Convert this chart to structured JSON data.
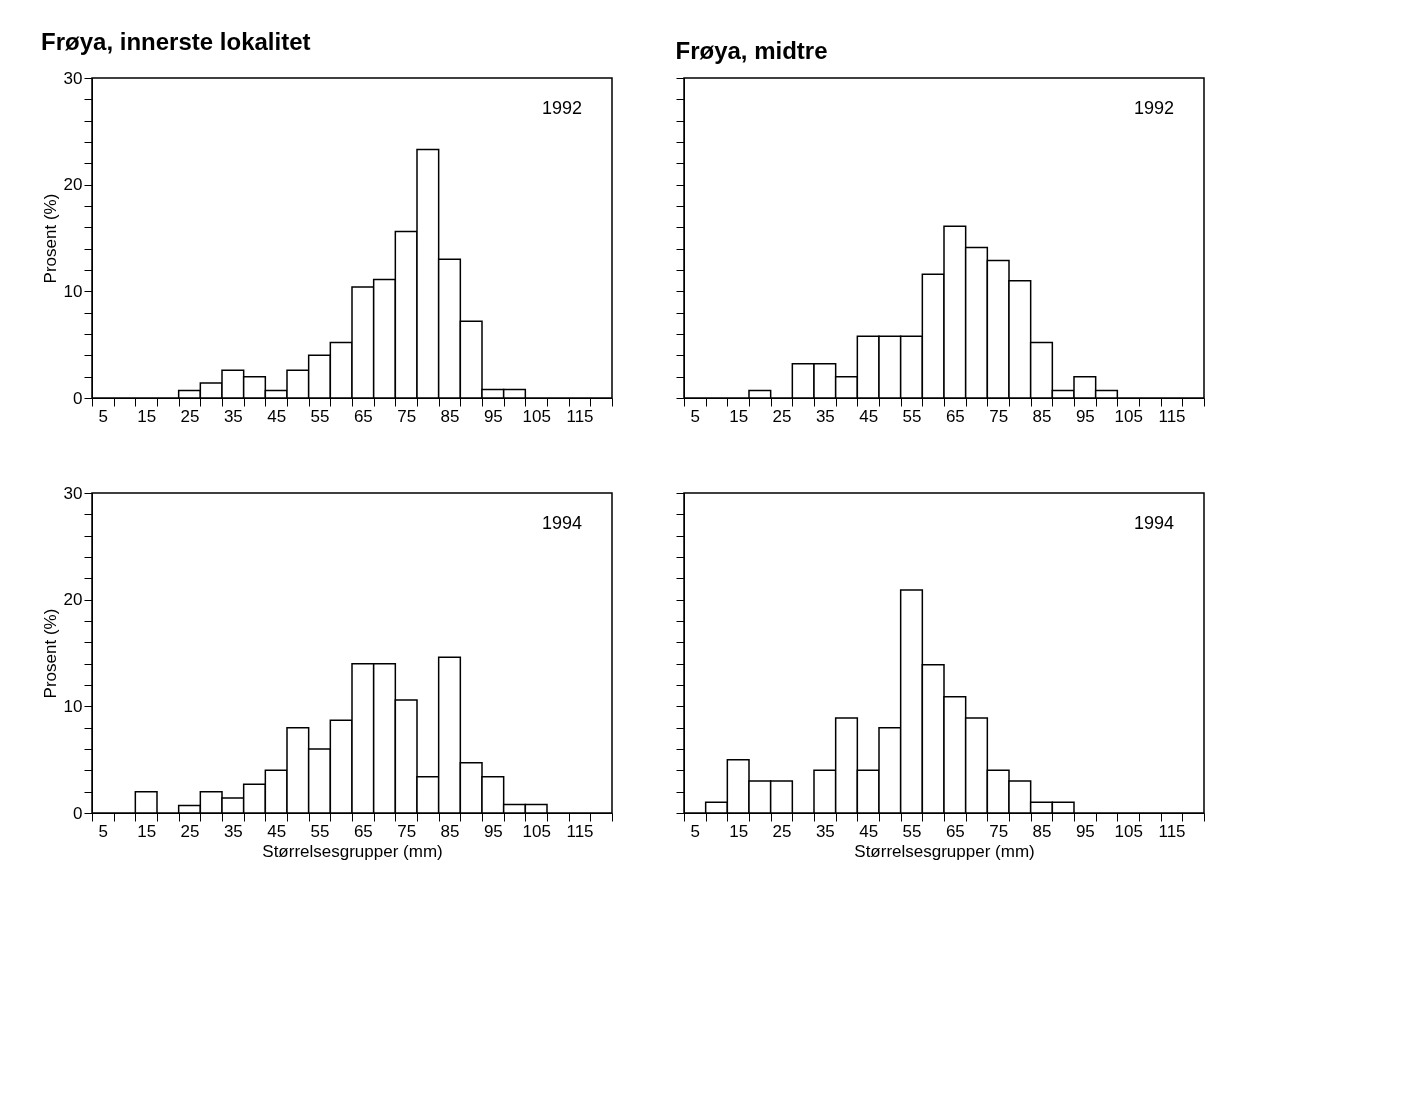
{
  "chart_data": [
    {
      "type": "histogram",
      "title": "Frøya, innerste lokalitet",
      "ylabel": "Prosent (%)",
      "annotations": [
        "1992"
      ],
      "color": "#ffffff",
      "bins": [
        2.5,
        7.5,
        12.5,
        17.5,
        22.5,
        27.5,
        32.5,
        37.5,
        42.5,
        47.5,
        52.5,
        57.5,
        62.5,
        67.5,
        72.5,
        77.5,
        82.5,
        87.5,
        92.5,
        97.5,
        102.5,
        107.5,
        112.5,
        117.5,
        122.5
      ],
      "values": [
        0,
        0,
        0,
        0,
        0.7,
        1.4,
        2.6,
        2.0,
        0.7,
        2.6,
        4.0,
        5.2,
        10.4,
        11.1,
        15.6,
        23.3,
        13.0,
        7.2,
        0.8,
        0.8,
        0,
        0,
        0,
        0
      ],
      "xlim": [
        2.5,
        122.5
      ],
      "ylim": [
        0,
        30
      ],
      "xticks": [
        5,
        15,
        25,
        35,
        45,
        55,
        65,
        75,
        85,
        95,
        105,
        115,
        {
          "value": 2.5,
          "label": null
        },
        {
          "value": 7.5,
          "label": null
        },
        {
          "value": 12.5,
          "label": null
        },
        {
          "value": 17.5,
          "label": null
        },
        {
          "value": 22.5,
          "label": null
        },
        {
          "value": 27.5,
          "label": null
        },
        {
          "value": 32.5,
          "label": null
        },
        {
          "value": 37.5,
          "label": null
        },
        {
          "value": 42.5,
          "label": null
        },
        {
          "value": 47.5,
          "label": null
        },
        {
          "value": 52.5,
          "label": null
        },
        {
          "value": 57.5,
          "label": null
        },
        {
          "value": 62.5,
          "label": null
        },
        {
          "value": 67.5,
          "label": null
        },
        {
          "value": 72.5,
          "label": null
        },
        {
          "value": 77.5,
          "label": null
        },
        {
          "value": 82.5,
          "label": null
        },
        {
          "value": 87.5,
          "label": null
        },
        {
          "value": 92.5,
          "label": null
        },
        {
          "value": 97.5,
          "label": null
        },
        {
          "value": 102.5,
          "label": null
        },
        {
          "value": 107.5,
          "label": null
        },
        {
          "value": 112.5,
          "label": null
        },
        {
          "value": 117.5,
          "label": null
        },
        {
          "value": 122.5,
          "label": null
        }
      ],
      "yticks": [
        0,
        10,
        20,
        30,
        {
          "value": 2,
          "label": null
        },
        {
          "value": 4,
          "label": null
        },
        {
          "value": 6,
          "label": null
        },
        {
          "value": 8,
          "label": null
        },
        {
          "value": 12,
          "label": null
        },
        {
          "value": 14,
          "label": null
        },
        {
          "value": 16,
          "label": null
        },
        {
          "value": 18,
          "label": null
        },
        {
          "value": 22,
          "label": null
        },
        {
          "value": 24,
          "label": null
        },
        {
          "value": 26,
          "label": null
        },
        {
          "value": 28,
          "label": null
        }
      ]
    },
    {
      "type": "histogram",
      "title": "Frøya, midtre",
      "annotations": [
        "1992"
      ],
      "color": "#ffffff",
      "tick_labels": "x",
      "bins": [
        2.5,
        7.5,
        12.5,
        17.5,
        22.5,
        27.5,
        32.5,
        37.5,
        42.5,
        47.5,
        52.5,
        57.5,
        62.5,
        67.5,
        72.5,
        77.5,
        82.5,
        87.5,
        92.5,
        97.5,
        102.5,
        107.5,
        112.5,
        117.5,
        122.5
      ],
      "values": [
        0,
        0,
        0,
        0.7,
        0,
        3.2,
        3.2,
        2.0,
        5.8,
        5.8,
        5.8,
        11.6,
        16.1,
        14.1,
        12.9,
        11.0,
        5.2,
        0.7,
        2.0,
        0.7,
        0,
        0,
        0,
        0
      ],
      "xlim": [
        2.5,
        122.5
      ],
      "ylim": [
        0,
        30
      ],
      "xticks": [
        5,
        15,
        25,
        35,
        45,
        55,
        65,
        75,
        85,
        95,
        105,
        115,
        {
          "value": 2.5,
          "label": null
        },
        {
          "value": 7.5,
          "label": null
        },
        {
          "value": 12.5,
          "label": null
        },
        {
          "value": 17.5,
          "label": null
        },
        {
          "value": 22.5,
          "label": null
        },
        {
          "value": 27.5,
          "label": null
        },
        {
          "value": 32.5,
          "label": null
        },
        {
          "value": 37.5,
          "label": null
        },
        {
          "value": 42.5,
          "label": null
        },
        {
          "value": 47.5,
          "label": null
        },
        {
          "value": 52.5,
          "label": null
        },
        {
          "value": 57.5,
          "label": null
        },
        {
          "value": 62.5,
          "label": null
        },
        {
          "value": 67.5,
          "label": null
        },
        {
          "value": 72.5,
          "label": null
        },
        {
          "value": 77.5,
          "label": null
        },
        {
          "value": 82.5,
          "label": null
        },
        {
          "value": 87.5,
          "label": null
        },
        {
          "value": 92.5,
          "label": null
        },
        {
          "value": 97.5,
          "label": null
        },
        {
          "value": 102.5,
          "label": null
        },
        {
          "value": 107.5,
          "label": null
        },
        {
          "value": 112.5,
          "label": null
        },
        {
          "value": 117.5,
          "label": null
        },
        {
          "value": 122.5,
          "label": null
        }
      ],
      "yticks": [
        0,
        10,
        20,
        30,
        {
          "value": 2,
          "label": null
        },
        {
          "value": 4,
          "label": null
        },
        {
          "value": 6,
          "label": null
        },
        {
          "value": 8,
          "label": null
        },
        {
          "value": 12,
          "label": null
        },
        {
          "value": 14,
          "label": null
        },
        {
          "value": 16,
          "label": null
        },
        {
          "value": 18,
          "label": null
        },
        {
          "value": 22,
          "label": null
        },
        {
          "value": 24,
          "label": null
        },
        {
          "value": 26,
          "label": null
        },
        {
          "value": 28,
          "label": null
        }
      ]
    },
    {
      "type": "histogram",
      "xlabel": "Størrelsesgrupper (mm)",
      "ylabel": "Prosent (%)",
      "annotations": [
        "1994"
      ],
      "color": "#ffffff",
      "bins": [
        2.5,
        7.5,
        12.5,
        17.5,
        22.5,
        27.5,
        32.5,
        37.5,
        42.5,
        47.5,
        52.5,
        57.5,
        62.5,
        67.5,
        72.5,
        77.5,
        82.5,
        87.5,
        92.5,
        97.5,
        102.5,
        107.5,
        112.5,
        117.5,
        122.5
      ],
      "values": [
        0,
        0,
        2.0,
        0,
        0.7,
        2.0,
        1.4,
        2.7,
        4.0,
        8.0,
        6.0,
        8.7,
        14.0,
        14.0,
        10.6,
        3.4,
        14.6,
        4.7,
        3.4,
        0.8,
        0.8,
        0,
        0,
        0
      ],
      "xlim": [
        2.5,
        122.5
      ],
      "ylim": [
        0,
        30
      ],
      "xticks": [
        5,
        15,
        25,
        35,
        45,
        55,
        65,
        75,
        85,
        95,
        105,
        115,
        {
          "value": 2.5,
          "label": null
        },
        {
          "value": 7.5,
          "label": null
        },
        {
          "value": 12.5,
          "label": null
        },
        {
          "value": 17.5,
          "label": null
        },
        {
          "value": 22.5,
          "label": null
        },
        {
          "value": 27.5,
          "label": null
        },
        {
          "value": 32.5,
          "label": null
        },
        {
          "value": 37.5,
          "label": null
        },
        {
          "value": 42.5,
          "label": null
        },
        {
          "value": 47.5,
          "label": null
        },
        {
          "value": 52.5,
          "label": null
        },
        {
          "value": 57.5,
          "label": null
        },
        {
          "value": 62.5,
          "label": null
        },
        {
          "value": 67.5,
          "label": null
        },
        {
          "value": 72.5,
          "label": null
        },
        {
          "value": 77.5,
          "label": null
        },
        {
          "value": 82.5,
          "label": null
        },
        {
          "value": 87.5,
          "label": null
        },
        {
          "value": 92.5,
          "label": null
        },
        {
          "value": 97.5,
          "label": null
        },
        {
          "value": 102.5,
          "label": null
        },
        {
          "value": 107.5,
          "label": null
        },
        {
          "value": 112.5,
          "label": null
        },
        {
          "value": 117.5,
          "label": null
        },
        {
          "value": 122.5,
          "label": null
        }
      ],
      "yticks": [
        0,
        10,
        20,
        30,
        {
          "value": 2,
          "label": null
        },
        {
          "value": 4,
          "label": null
        },
        {
          "value": 6,
          "label": null
        },
        {
          "value": 8,
          "label": null
        },
        {
          "value": 12,
          "label": null
        },
        {
          "value": 14,
          "label": null
        },
        {
          "value": 16,
          "label": null
        },
        {
          "value": 18,
          "label": null
        },
        {
          "value": 22,
          "label": null
        },
        {
          "value": 24,
          "label": null
        },
        {
          "value": 26,
          "label": null
        },
        {
          "value": 28,
          "label": null
        }
      ]
    },
    {
      "type": "histogram",
      "xlabel": "Størrelsesgrupper (mm)",
      "annotations": [
        "1994"
      ],
      "color": "#ffffff",
      "tick_labels": "x",
      "bins": [
        2.5,
        7.5,
        12.5,
        17.5,
        22.5,
        27.5,
        32.5,
        37.5,
        42.5,
        47.5,
        52.5,
        57.5,
        62.5,
        67.5,
        72.5,
        77.5,
        82.5,
        87.5,
        92.5,
        97.5,
        102.5,
        107.5,
        112.5,
        117.5,
        122.5
      ],
      "values": [
        0,
        1.0,
        5.0,
        3.0,
        3.0,
        0,
        4.0,
        8.9,
        4.0,
        8.0,
        20.9,
        13.9,
        10.9,
        8.9,
        4.0,
        3.0,
        1.0,
        1.0,
        0,
        0,
        0,
        0,
        0,
        0
      ],
      "xlim": [
        2.5,
        122.5
      ],
      "ylim": [
        0,
        30
      ],
      "xticks": [
        5,
        15,
        25,
        35,
        45,
        55,
        65,
        75,
        85,
        95,
        105,
        115,
        {
          "value": 2.5,
          "label": null
        },
        {
          "value": 7.5,
          "label": null
        },
        {
          "value": 12.5,
          "label": null
        },
        {
          "value": 17.5,
          "label": null
        },
        {
          "value": 22.5,
          "label": null
        },
        {
          "value": 27.5,
          "label": null
        },
        {
          "value": 32.5,
          "label": null
        },
        {
          "value": 37.5,
          "label": null
        },
        {
          "value": 42.5,
          "label": null
        },
        {
          "value": 47.5,
          "label": null
        },
        {
          "value": 52.5,
          "label": null
        },
        {
          "value": 57.5,
          "label": null
        },
        {
          "value": 62.5,
          "label": null
        },
        {
          "value": 67.5,
          "label": null
        },
        {
          "value": 72.5,
          "label": null
        },
        {
          "value": 77.5,
          "label": null
        },
        {
          "value": 82.5,
          "label": null
        },
        {
          "value": 87.5,
          "label": null
        },
        {
          "value": 92.5,
          "label": null
        },
        {
          "value": 97.5,
          "label": null
        },
        {
          "value": 102.5,
          "label": null
        },
        {
          "value": 107.5,
          "label": null
        },
        {
          "value": 112.5,
          "label": null
        },
        {
          "value": 117.5,
          "label": null
        },
        {
          "value": 122.5,
          "label": null
        }
      ],
      "yticks": [
        0,
        10,
        20,
        30,
        {
          "value": 2,
          "label": null
        },
        {
          "value": 4,
          "label": null
        },
        {
          "value": 6,
          "label": null
        },
        {
          "value": 8,
          "label": null
        },
        {
          "value": 12,
          "label": null
        },
        {
          "value": 14,
          "label": null
        },
        {
          "value": 16,
          "label": null
        },
        {
          "value": 18,
          "label": null
        },
        {
          "value": 22,
          "label": null
        },
        {
          "value": 24,
          "label": null
        },
        {
          "value": 26,
          "label": null
        },
        {
          "value": 28,
          "label": null
        }
      ]
    }
  ]
}
